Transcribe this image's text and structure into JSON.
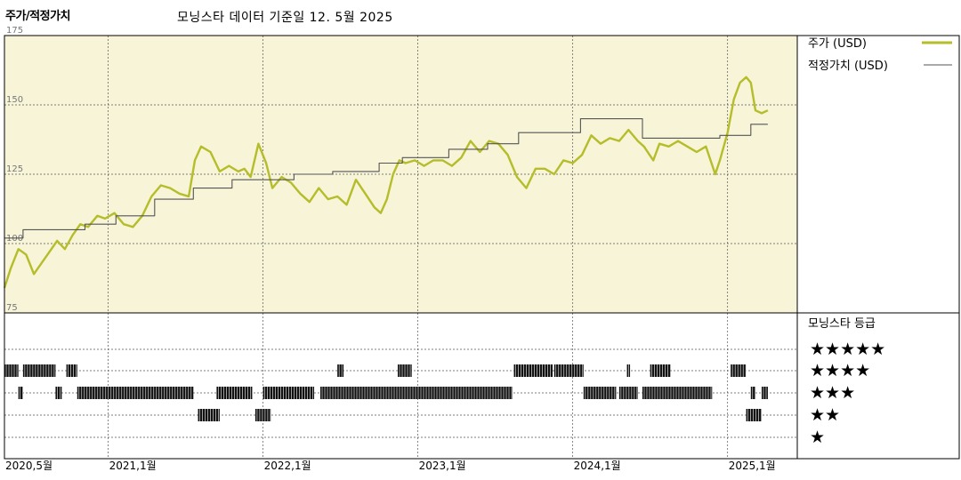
{
  "header": {
    "title": "주가/적정가치",
    "subtitle": "모닝스타 데이터 기준일 12. 5월 2025"
  },
  "colors": {
    "price": "#b5bd2a",
    "fair_value": "#555555",
    "plot_background": "#f7f4d7",
    "rating_bar": "#111111"
  },
  "legend": {
    "price": "주가 (USD)",
    "fair_value": "적정가치 (USD)",
    "rating_title": "모닝스타 등급"
  },
  "rating_levels": [
    "★★★★★",
    "★★★★",
    "★★★",
    "★★",
    "★"
  ],
  "chart_data": {
    "type": "line",
    "title": "주가/적정가치",
    "x_unit": "year (decimal)",
    "xlim": [
      2020.33,
      2025.45
    ],
    "ylim": [
      75,
      175
    ],
    "y_ticks": [
      75,
      100,
      125,
      150,
      175
    ],
    "y_tick_labels": [
      "75",
      "100",
      "125",
      "150",
      "175"
    ],
    "x_ticks": [
      2020.33,
      2021.0,
      2022.0,
      2023.0,
      2024.0,
      2025.0
    ],
    "x_tick_labels": [
      "2020,5월",
      "2021,1월",
      "2022,1월",
      "2023,1월",
      "2024,1월",
      "2025,1월"
    ],
    "grid": true,
    "legend_position": "right",
    "series": [
      {
        "name": "주가 (USD)",
        "style": "line",
        "points": [
          [
            2020.33,
            84
          ],
          [
            2020.37,
            91
          ],
          [
            2020.42,
            98
          ],
          [
            2020.47,
            96
          ],
          [
            2020.52,
            89
          ],
          [
            2020.57,
            93
          ],
          [
            2020.62,
            97
          ],
          [
            2020.67,
            101
          ],
          [
            2020.72,
            98
          ],
          [
            2020.77,
            103
          ],
          [
            2020.82,
            107
          ],
          [
            2020.87,
            106
          ],
          [
            2020.93,
            110
          ],
          [
            2020.98,
            109
          ],
          [
            2021.04,
            111
          ],
          [
            2021.1,
            107
          ],
          [
            2021.16,
            106
          ],
          [
            2021.22,
            110
          ],
          [
            2021.28,
            117
          ],
          [
            2021.34,
            121
          ],
          [
            2021.4,
            120
          ],
          [
            2021.46,
            118
          ],
          [
            2021.52,
            117
          ],
          [
            2021.56,
            130
          ],
          [
            2021.6,
            135
          ],
          [
            2021.66,
            133
          ],
          [
            2021.72,
            126
          ],
          [
            2021.78,
            128
          ],
          [
            2021.84,
            126
          ],
          [
            2021.88,
            127
          ],
          [
            2021.92,
            124
          ],
          [
            2021.97,
            136
          ],
          [
            2022.02,
            129
          ],
          [
            2022.06,
            120
          ],
          [
            2022.12,
            124
          ],
          [
            2022.18,
            122
          ],
          [
            2022.24,
            118
          ],
          [
            2022.3,
            115
          ],
          [
            2022.36,
            120
          ],
          [
            2022.42,
            116
          ],
          [
            2022.48,
            117
          ],
          [
            2022.54,
            114
          ],
          [
            2022.6,
            123
          ],
          [
            2022.66,
            118
          ],
          [
            2022.72,
            113
          ],
          [
            2022.76,
            111
          ],
          [
            2022.8,
            116
          ],
          [
            2022.84,
            125
          ],
          [
            2022.88,
            130
          ],
          [
            2022.92,
            129
          ],
          [
            2022.98,
            130
          ],
          [
            2023.04,
            128
          ],
          [
            2023.1,
            130
          ],
          [
            2023.16,
            130
          ],
          [
            2023.22,
            128
          ],
          [
            2023.28,
            131
          ],
          [
            2023.34,
            137
          ],
          [
            2023.4,
            133
          ],
          [
            2023.46,
            137
          ],
          [
            2023.52,
            136
          ],
          [
            2023.58,
            132
          ],
          [
            2023.64,
            124
          ],
          [
            2023.7,
            120
          ],
          [
            2023.76,
            127
          ],
          [
            2023.82,
            127
          ],
          [
            2023.88,
            125
          ],
          [
            2023.94,
            130
          ],
          [
            2024.0,
            129
          ],
          [
            2024.06,
            132
          ],
          [
            2024.12,
            139
          ],
          [
            2024.18,
            136
          ],
          [
            2024.24,
            138
          ],
          [
            2024.3,
            137
          ],
          [
            2024.36,
            141
          ],
          [
            2024.42,
            137
          ],
          [
            2024.46,
            135
          ],
          [
            2024.52,
            130
          ],
          [
            2024.56,
            136
          ],
          [
            2024.62,
            135
          ],
          [
            2024.68,
            137
          ],
          [
            2024.74,
            135
          ],
          [
            2024.8,
            133
          ],
          [
            2024.86,
            135
          ],
          [
            2024.92,
            125
          ],
          [
            2024.95,
            130
          ],
          [
            2025.0,
            140
          ],
          [
            2025.04,
            152
          ],
          [
            2025.08,
            158
          ],
          [
            2025.12,
            160
          ],
          [
            2025.15,
            158
          ],
          [
            2025.18,
            148
          ],
          [
            2025.22,
            147
          ],
          [
            2025.26,
            148
          ]
        ]
      },
      {
        "name": "적정가치 (USD)",
        "style": "step",
        "points": [
          [
            2020.33,
            102
          ],
          [
            2020.45,
            102
          ],
          [
            2020.45,
            105
          ],
          [
            2020.85,
            105
          ],
          [
            2020.85,
            107
          ],
          [
            2021.05,
            107
          ],
          [
            2021.05,
            110
          ],
          [
            2021.3,
            110
          ],
          [
            2021.3,
            116
          ],
          [
            2021.55,
            116
          ],
          [
            2021.55,
            120
          ],
          [
            2021.8,
            120
          ],
          [
            2021.8,
            123
          ],
          [
            2022.2,
            123
          ],
          [
            2022.2,
            125
          ],
          [
            2022.45,
            125
          ],
          [
            2022.45,
            126
          ],
          [
            2022.75,
            126
          ],
          [
            2022.75,
            129
          ],
          [
            2022.9,
            129
          ],
          [
            2022.9,
            131
          ],
          [
            2023.2,
            131
          ],
          [
            2023.2,
            134
          ],
          [
            2023.45,
            134
          ],
          [
            2023.45,
            136
          ],
          [
            2023.65,
            136
          ],
          [
            2023.65,
            140
          ],
          [
            2024.05,
            140
          ],
          [
            2024.05,
            145
          ],
          [
            2024.45,
            145
          ],
          [
            2024.45,
            138
          ],
          [
            2024.95,
            138
          ],
          [
            2024.95,
            139
          ],
          [
            2025.15,
            139
          ],
          [
            2025.15,
            143
          ],
          [
            2025.26,
            143
          ]
        ]
      }
    ],
    "rating_history": [
      {
        "stars": 5,
        "periods": []
      },
      {
        "stars": 4,
        "periods": [
          [
            2020.33,
            2020.42
          ],
          [
            2020.45,
            2020.66
          ],
          [
            2020.73,
            2020.8
          ],
          [
            2022.48,
            2022.52
          ],
          [
            2022.87,
            2022.96
          ],
          [
            2023.62,
            2023.87
          ],
          [
            2023.88,
            2024.07
          ],
          [
            2024.35,
            2024.37
          ],
          [
            2024.5,
            2024.63
          ],
          [
            2025.02,
            2025.12
          ]
        ]
      },
      {
        "stars": 3,
        "periods": [
          [
            2020.42,
            2020.45
          ],
          [
            2020.66,
            2020.7
          ],
          [
            2020.8,
            2021.55
          ],
          [
            2021.7,
            2021.93
          ],
          [
            2022.0,
            2022.33
          ],
          [
            2022.37,
            2023.61
          ],
          [
            2024.07,
            2024.28
          ],
          [
            2024.3,
            2024.42
          ],
          [
            2024.45,
            2024.9
          ],
          [
            2025.15,
            2025.18
          ],
          [
            2025.22,
            2025.26
          ]
        ]
      },
      {
        "stars": 2,
        "periods": [
          [
            2021.58,
            2021.72
          ],
          [
            2021.95,
            2022.05
          ],
          [
            2025.12,
            2025.22
          ]
        ]
      },
      {
        "stars": 1,
        "periods": []
      }
    ]
  }
}
